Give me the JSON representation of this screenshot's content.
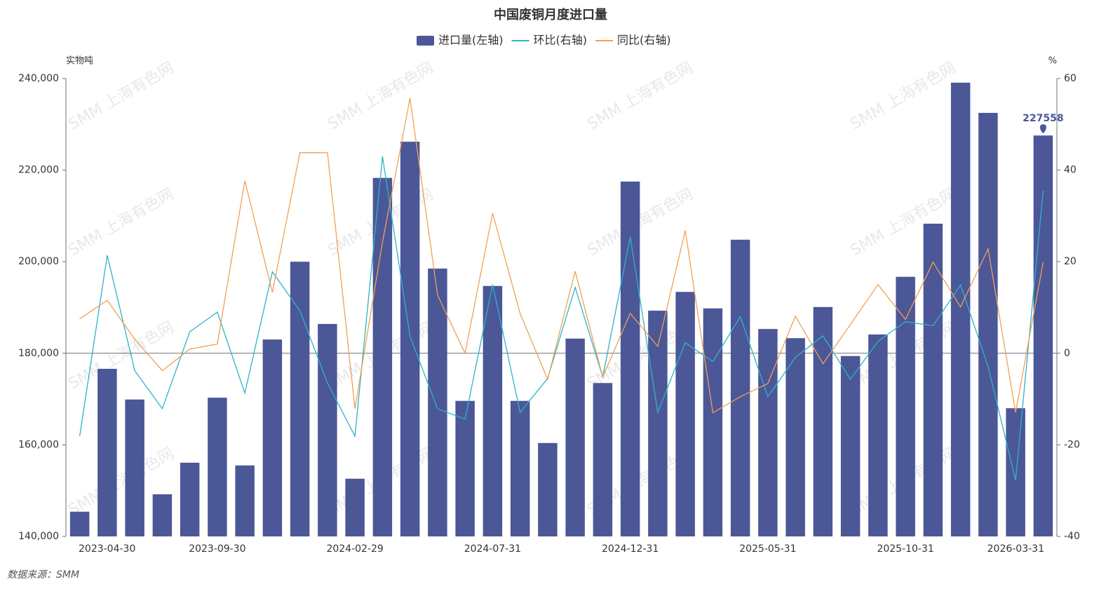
{
  "chart_data": {
    "type": "bar_line",
    "title": "中国废铜月度进口量",
    "watermark": "SMM 上海有色网",
    "source": "数据来源：SMM",
    "y_label": "实物吨",
    "y2_label": "%",
    "categories": [
      "2023-04-30",
      null,
      null,
      null,
      null,
      "2023-09-30",
      null,
      null,
      null,
      null,
      "2024-02-29",
      null,
      null,
      null,
      null,
      "2024-07-31",
      null,
      null,
      null,
      null,
      "2024-12-31",
      null,
      null,
      null,
      null,
      "2025-05-31",
      null,
      null,
      null,
      null,
      "2025-10-31",
      null,
      null,
      null,
      null,
      "2026-03-31"
    ],
    "series": [
      {
        "name": "进口量(左轴)",
        "type": "bar",
        "color": "#4b5797",
        "values": [
          145400,
          176600,
          169900,
          149200,
          156100,
          170300,
          155500,
          183000,
          200000,
          186400,
          152600,
          218300,
          226200,
          198500,
          169600,
          194700,
          169600,
          160400,
          183200,
          173500,
          217500,
          189300,
          193400,
          189800,
          204800,
          185300,
          183300,
          190100,
          179400,
          184100,
          196700,
          208300,
          239100,
          232500,
          168000,
          227558
        ]
      },
      {
        "name": "环比(右轴)",
        "type": "line",
        "axis": "y2",
        "color": "#2eb3c9",
        "values": [
          -18.1,
          21.4,
          -3.8,
          -12.1,
          4.7,
          9.0,
          -8.7,
          17.8,
          9.3,
          -6.5,
          -18.1,
          43.0,
          3.7,
          -12.1,
          -14.4,
          15.0,
          -12.9,
          -5.5,
          14.4,
          -5.2,
          25.4,
          -12.9,
          2.3,
          -1.8,
          8.0,
          -9.5,
          -0.9,
          3.8,
          -5.7,
          2.6,
          6.9,
          6.0,
          14.9,
          -2.9,
          -27.7,
          35.5
        ]
      },
      {
        "name": "同比(右轴)",
        "type": "line",
        "axis": "y2",
        "color": "#f0a054",
        "values": [
          7.5,
          11.6,
          3.1,
          -3.8,
          0.9,
          2.0,
          37.7,
          13.3,
          43.8,
          43.8,
          -12.1,
          24.3,
          55.7,
          12.7,
          0,
          30.6,
          8.7,
          -5.7,
          17.9,
          -5.2,
          8.7,
          1.5,
          26.8,
          -13.0,
          -9.5,
          -6.6,
          8.1,
          -2.3,
          6.3,
          15.0,
          7.4,
          19.9,
          10.1,
          22.8,
          -12.9,
          19.9
        ]
      }
    ],
    "ylim": [
      140000,
      240000
    ],
    "yticks": [
      {
        "value": 140000,
        "label": "140,000"
      },
      {
        "value": 160000,
        "label": "160,000"
      },
      {
        "value": 180000,
        "label": "180,000"
      },
      {
        "value": 200000,
        "label": "200,000"
      },
      {
        "value": 220000,
        "label": "220,000"
      },
      {
        "value": 240000,
        "label": "240,000"
      }
    ],
    "y2lim": [
      -40,
      60
    ],
    "y2ticks": [
      -40,
      -20,
      0,
      20,
      40,
      60
    ]
  }
}
